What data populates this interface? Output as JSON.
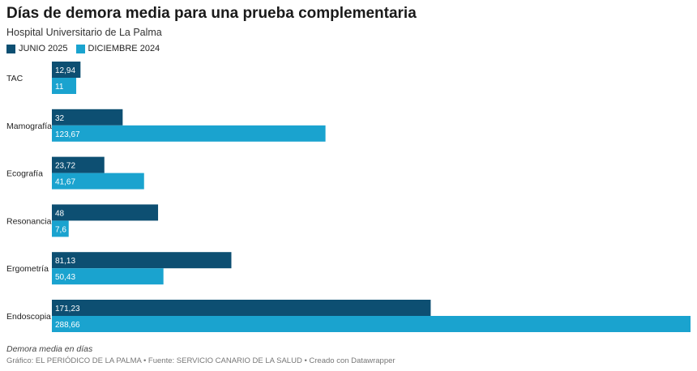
{
  "header": {
    "title": "Días de demora media para una prueba complementaria",
    "subtitle": "Hospital Universitario de La Palma"
  },
  "footer": {
    "note": "Demora media en días",
    "credits": "Gráfico: EL PERIÓDICO DE LA PALMA • Fuente: SERVICIO CANARIO DE LA SALUD • Creado con Datawrapper"
  },
  "chart_data": {
    "type": "bar",
    "orientation": "horizontal",
    "categories": [
      "TAC",
      "Mamografía",
      "Ecografía",
      "Resonancia",
      "Ergometría",
      "Endoscopia"
    ],
    "series": [
      {
        "name": "JUNIO 2025",
        "color": "#0d4f72",
        "values": [
          12.94,
          32,
          23.72,
          48,
          81.13,
          171.23
        ],
        "labels": [
          "12,94",
          "32",
          "23,72",
          "48",
          "81,13",
          "171,23"
        ]
      },
      {
        "name": "DICIEMBRE 2024",
        "color": "#1aa3cf",
        "values": [
          11,
          123.67,
          41.67,
          7.6,
          50.43,
          288.66
        ],
        "labels": [
          "11",
          "123,67",
          "41,67",
          "7,6",
          "50,43",
          "288,66"
        ]
      }
    ],
    "xlim": [
      0,
      288.66
    ],
    "legend_position": "top-left",
    "grid": false
  }
}
